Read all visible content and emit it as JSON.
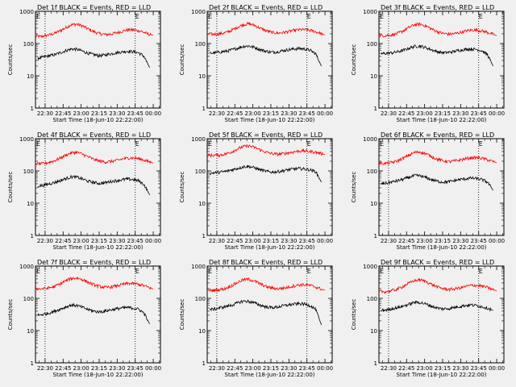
{
  "chart_data": {
    "type": "line",
    "grid_layout": "3x3",
    "xlabel": "Start Time (18-Jun-10 22:22:00)",
    "ylabel": "Counts/sec",
    "yscale": "log",
    "ylim": [
      1,
      1000
    ],
    "y_ticks": [
      "1",
      "10",
      "100",
      "1000"
    ],
    "xlim": [
      "22:22",
      "00:06"
    ],
    "x_ticks": [
      "22:30",
      "22:45",
      "23:00",
      "23:15",
      "23:30",
      "23:45",
      "00:00"
    ],
    "markers": [
      {
        "label": "E",
        "time": "22:30"
      },
      {
        "label": "E",
        "time": "23:45"
      }
    ],
    "colors": {
      "events": "#000000",
      "lld": "#ff0000"
    },
    "panels": [
      {
        "title": "Det 1f BLACK = Events, RED = LLD",
        "series": [
          {
            "color": "#ff0000",
            "start": "22:22",
            "end": "00:00",
            "values": [
              170,
              165,
              180,
              200,
              240,
              300,
              380,
              400,
              350,
              280,
              230,
              200,
              190,
              200,
              220,
              250,
              270,
              260,
              240,
              200,
              180
            ]
          },
          {
            "color": "#000000",
            "start": "22:24",
            "end": "23:57",
            "values": [
              35,
              38,
              42,
              45,
              52,
              60,
              68,
              66,
              58,
              50,
              45,
              42,
              44,
              48,
              52,
              55,
              58,
              56,
              52,
              40,
              18
            ]
          }
        ]
      },
      {
        "title": "Det 2f BLACK = Events, RED = LLD",
        "series": [
          {
            "color": "#ff0000",
            "start": "22:22",
            "end": "00:00",
            "values": [
              200,
              195,
              200,
              215,
              250,
              310,
              380,
              410,
              370,
              300,
              250,
              220,
              210,
              220,
              240,
              260,
              270,
              265,
              245,
              215,
              185
            ]
          },
          {
            "color": "#000000",
            "start": "22:24",
            "end": "23:57",
            "values": [
              50,
              52,
              55,
              58,
              64,
              72,
              82,
              84,
              76,
              66,
              58,
              54,
              55,
              60,
              64,
              68,
              70,
              68,
              62,
              48,
              20
            ]
          }
        ]
      },
      {
        "title": "Det 3f BLACK = Events, RED = LLD",
        "series": [
          {
            "color": "#ff0000",
            "start": "22:22",
            "end": "00:00",
            "values": [
              180,
              175,
              185,
              200,
              240,
              310,
              380,
              400,
              350,
              280,
              230,
              205,
              195,
              205,
              225,
              250,
              265,
              255,
              235,
              205,
              175
            ]
          },
          {
            "color": "#000000",
            "start": "22:24",
            "end": "23:57",
            "values": [
              48,
              50,
              52,
              56,
              62,
              72,
              82,
              84,
              74,
              64,
              56,
              52,
              53,
              57,
              62,
              66,
              68,
              66,
              60,
              45,
              20
            ]
          }
        ]
      },
      {
        "title": "Det 4f BLACK = Events, RED = LLD",
        "series": [
          {
            "color": "#ff0000",
            "start": "22:22",
            "end": "00:00",
            "values": [
              170,
              165,
              180,
              200,
              240,
              300,
              360,
              380,
              330,
              270,
              225,
              200,
              190,
              200,
              215,
              240,
              255,
              250,
              230,
              200,
              175
            ]
          },
          {
            "color": "#000000",
            "start": "22:24",
            "end": "23:57",
            "values": [
              34,
              36,
              40,
              44,
              50,
              58,
              66,
              64,
              56,
              48,
              44,
              41,
              43,
              47,
              50,
              53,
              56,
              54,
              50,
              38,
              18
            ]
          }
        ]
      },
      {
        "title": "Det 5f BLACK = Events, RED = LLD",
        "series": [
          {
            "color": "#ff0000",
            "start": "22:22",
            "end": "00:00",
            "values": [
              310,
              305,
              310,
              330,
              380,
              470,
              560,
              600,
              540,
              450,
              380,
              345,
              330,
              345,
              370,
              400,
              420,
              410,
              390,
              360,
              320
            ]
          },
          {
            "color": "#000000",
            "start": "22:24",
            "end": "23:57",
            "values": [
              85,
              88,
              92,
              98,
              108,
              120,
              135,
              138,
              125,
              110,
              98,
              92,
              94,
              100,
              108,
              115,
              118,
              115,
              108,
              95,
              45
            ]
          }
        ]
      },
      {
        "title": "Det 6f BLACK = Events, RED = LLD",
        "series": [
          {
            "color": "#ff0000",
            "start": "22:22",
            "end": "00:00",
            "values": [
              175,
              170,
              180,
              200,
              240,
              300,
              370,
              390,
              340,
              275,
              228,
              205,
              195,
              205,
              222,
              245,
              260,
              255,
              235,
              205,
              178
            ]
          },
          {
            "color": "#000000",
            "start": "22:24",
            "end": "23:57",
            "values": [
              40,
              42,
              46,
              50,
              56,
              64,
              72,
              70,
              62,
              54,
              48,
              45,
              46,
              50,
              54,
              57,
              60,
              58,
              54,
              45,
              25
            ]
          }
        ]
      },
      {
        "title": "Det 7f BLACK = Events, RED = LLD",
        "series": [
          {
            "color": "#ff0000",
            "start": "22:22",
            "end": "00:00",
            "values": [
              200,
              195,
              205,
              225,
              270,
              340,
              410,
              430,
              380,
              310,
              260,
              230,
              218,
              228,
              248,
              275,
              290,
              282,
              260,
              225,
              195
            ]
          },
          {
            "color": "#000000",
            "start": "22:24",
            "end": "23:57",
            "values": [
              30,
              32,
              35,
              40,
              46,
              54,
              62,
              60,
              52,
              45,
              40,
              38,
              40,
              44,
              47,
              50,
              52,
              50,
              46,
              35,
              16
            ]
          }
        ]
      },
      {
        "title": "Det 8f BLACK = Events, RED = LLD",
        "series": [
          {
            "color": "#ff0000",
            "start": "22:22",
            "end": "00:00",
            "values": [
              180,
              175,
              185,
              200,
              240,
              300,
              370,
              390,
              345,
              280,
              232,
              208,
              198,
              208,
              226,
              250,
              265,
              258,
              238,
              205,
              178
            ]
          },
          {
            "color": "#000000",
            "start": "22:24",
            "end": "23:57",
            "values": [
              45,
              47,
              52,
              56,
              62,
              72,
              82,
              80,
              72,
              62,
              55,
              52,
              53,
              58,
              62,
              66,
              68,
              66,
              60,
              45,
              15
            ]
          }
        ]
      },
      {
        "title": "Det 9f BLACK = Events, RED = LLD",
        "series": [
          {
            "color": "#ff0000",
            "start": "22:22",
            "end": "00:00",
            "values": [
              165,
              160,
              170,
              190,
              230,
              290,
              355,
              375,
              330,
              268,
              222,
              198,
              188,
              198,
              215,
              240,
              255,
              248,
              228,
              198,
              170
            ]
          },
          {
            "color": "#000000",
            "start": "22:24",
            "end": "23:57",
            "values": [
              42,
              44,
              48,
              52,
              58,
              66,
              76,
              74,
              66,
              57,
              50,
              47,
              48,
              52,
              56,
              60,
              62,
              60,
              55,
              50,
              42
            ]
          }
        ]
      }
    ]
  }
}
